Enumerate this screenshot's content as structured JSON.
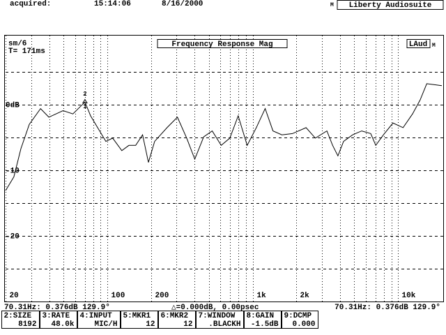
{
  "header": {
    "acquired": "acquired:",
    "time": "15:14:06",
    "date": "8/16/2000",
    "flag": "M",
    "app": "Liberty Audiosuite"
  },
  "panel": {
    "smoothing": "sm/6",
    "window_time": "T= 171ms",
    "badge": "LAud",
    "badge_flag": "M"
  },
  "chart_data": {
    "type": "line",
    "title": "Frequency Response Mag",
    "x": [
      20,
      22.8,
      25.5,
      29.1,
      34.8,
      39.7,
      49.7,
      58.1,
      70.31,
      76.9,
      85.9,
      97.9,
      109,
      126,
      141,
      157,
      175,
      192,
      212,
      258,
      304,
      352,
      400,
      461,
      527,
      608,
      697,
      796,
      917,
      1060,
      1220,
      1380,
      1590,
      1880,
      2330,
      2700,
      3240,
      3550,
      3860,
      4220,
      4870,
      5620,
      6490,
      7030,
      7930,
      9230,
      10830,
      12580,
      14170,
      15760,
      20000
    ],
    "values": [
      -13.1,
      -11,
      -6.7,
      -3.0,
      -0.6,
      -1.9,
      -0.9,
      -1.4,
      0.4,
      -1.7,
      -3.5,
      -5.6,
      -5.1,
      -7.0,
      -6.2,
      -6.2,
      -4.6,
      -8.8,
      -5.6,
      -3.5,
      -1.9,
      -5.1,
      -8.3,
      -4.9,
      -4.0,
      -6.2,
      -5.1,
      -1.7,
      -6.2,
      -3.5,
      -0.6,
      -4.0,
      -4.6,
      -4.4,
      -3.5,
      -5.1,
      -4.0,
      -6.2,
      -7.8,
      -5.6,
      -4.6,
      -4.0,
      -4.4,
      -6.2,
      -4.6,
      -2.8,
      -3.5,
      -1.4,
      0.7,
      3.2,
      2.9
    ],
    "color": "#000000",
    "xscale": "log",
    "xlim": [
      20,
      20000
    ],
    "ylim": [
      -30,
      10
    ],
    "xticks": [
      20,
      100,
      200,
      {
        "value": 1000,
        "label": "1k"
      },
      {
        "value": 2000,
        "label": "2k"
      },
      {
        "value": 10000,
        "label": "10k"
      }
    ],
    "xminor": [
      30,
      40,
      50,
      60,
      70,
      80,
      90,
      300,
      400,
      500,
      600,
      700,
      800,
      900,
      3000,
      4000,
      5000,
      6000,
      7000,
      8000,
      9000
    ],
    "yticks": [
      {
        "value": 0,
        "label": "0dB"
      },
      -10,
      -20
    ],
    "yminor": [
      5,
      -5,
      -15,
      -25
    ],
    "grid": true,
    "marker": {
      "x": 70.31,
      "y": 0.376,
      "labels": [
        "2",
        "1"
      ]
    }
  },
  "status": {
    "left": "70.31Hz: 0.376dB  129.9°",
    "center": "△=0.000dB, 0.00psec",
    "right": "70.31Hz: 0.376dB 129.9°"
  },
  "keys": [
    {
      "label": "2:SIZE",
      "value": "8192"
    },
    {
      "label": "3:RATE",
      "value": "48.0k"
    },
    {
      "label": "4:INPUT",
      "value": "MIC/H"
    },
    {
      "label": "5:MKR1",
      "value": "12"
    },
    {
      "label": "6:MKR2",
      "value": "12"
    },
    {
      "label": "7:WINDOW",
      "value": ".BLACKH"
    },
    {
      "label": "8:GAIN",
      "value": "-1.5dB"
    },
    {
      "label": "9:DCMP",
      "value": "0.000"
    }
  ]
}
